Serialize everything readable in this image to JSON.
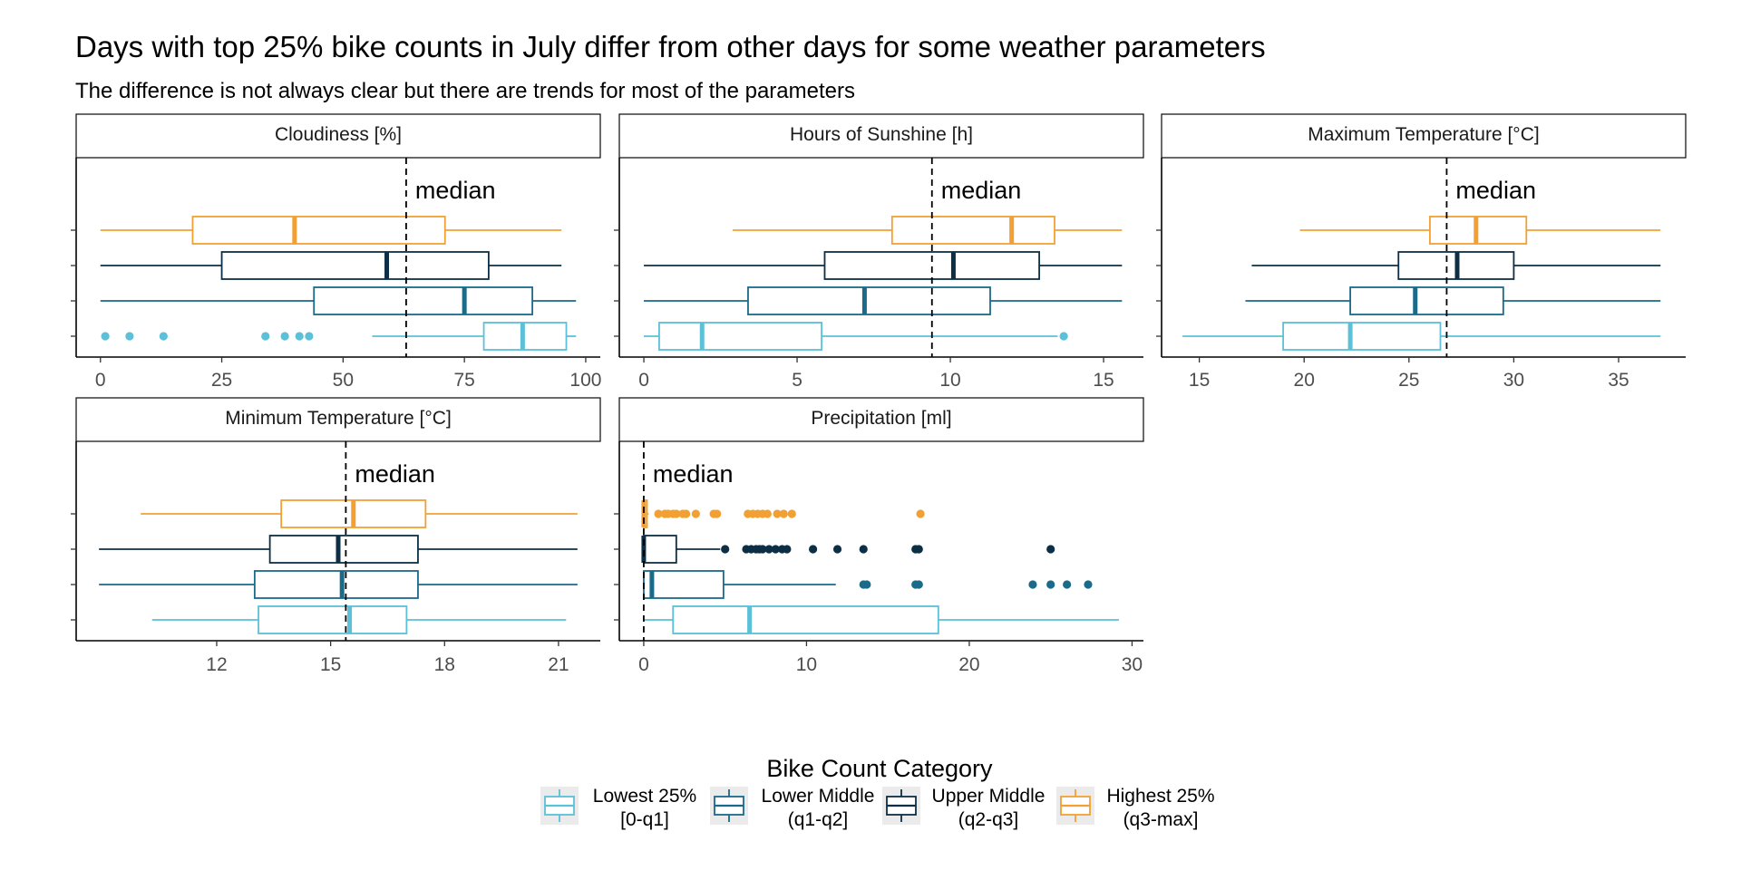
{
  "title": "Days with top 25% bike counts in July differ from other days for some weather parameters",
  "subtitle": "The difference is not always clear but there are trends for most of the parameters",
  "median_text": "median",
  "legend": {
    "title": "Bike Count Category",
    "items": [
      {
        "line1": "Lowest 25%",
        "line2": "[0-q1]",
        "color": "#5bc0d8"
      },
      {
        "line1": "Lower Middle",
        "line2": "(q1-q2]",
        "color": "#1a6a8a"
      },
      {
        "line1": "Upper Middle",
        "line2": "(q2-q3]",
        "color": "#0d2f45"
      },
      {
        "line1": "Highest 25%",
        "line2": "(q3-max]",
        "color": "#f2a033"
      }
    ]
  },
  "chart_data": {
    "type": "boxplot",
    "orientation": "horizontal",
    "series_order": [
      "Lowest 25%",
      "Lower Middle",
      "Upper Middle",
      "Highest 25%"
    ],
    "colors": [
      "#5bc0d8",
      "#1a6a8a",
      "#0d2f45",
      "#f2a033"
    ],
    "panels": [
      {
        "label": "Cloudiness [%]",
        "xlim": [
          -5,
          103
        ],
        "ticks": [
          0,
          25,
          50,
          75,
          100
        ],
        "overall_median": 63,
        "boxes": [
          {
            "min": 56,
            "q1": 79,
            "median": 87,
            "q3": 96,
            "max": 98,
            "outliers": [
              1,
              6,
              13,
              34,
              38,
              41,
              43
            ]
          },
          {
            "min": 0,
            "q1": 44,
            "median": 75,
            "q3": 89,
            "max": 98,
            "outliers": []
          },
          {
            "min": 0,
            "q1": 25,
            "median": 59,
            "q3": 80,
            "max": 95,
            "outliers": []
          },
          {
            "min": 0,
            "q1": 19,
            "median": 40,
            "q3": 71,
            "max": 95,
            "outliers": []
          }
        ]
      },
      {
        "label": "Hours of Sunshine [h]",
        "xlim": [
          -0.8,
          16.3
        ],
        "ticks": [
          0,
          5,
          10,
          15
        ],
        "overall_median": 9.4,
        "boxes": [
          {
            "min": 0,
            "q1": 0.5,
            "median": 1.9,
            "q3": 5.8,
            "max": 13.5,
            "outliers": [
              13.7
            ]
          },
          {
            "min": 0,
            "q1": 3.4,
            "median": 7.2,
            "q3": 11.3,
            "max": 15.6,
            "outliers": []
          },
          {
            "min": 0,
            "q1": 5.9,
            "median": 10.1,
            "q3": 12.9,
            "max": 15.6,
            "outliers": []
          },
          {
            "min": 2.9,
            "q1": 8.1,
            "median": 12.0,
            "q3": 13.4,
            "max": 15.6,
            "outliers": []
          }
        ]
      },
      {
        "label": "Maximum Temperature [°C]",
        "xlim": [
          13.2,
          38.2
        ],
        "ticks": [
          15,
          20,
          25,
          30,
          35
        ],
        "overall_median": 26.8,
        "boxes": [
          {
            "min": 14.2,
            "q1": 19.0,
            "median": 22.2,
            "q3": 26.5,
            "max": 37.0,
            "outliers": []
          },
          {
            "min": 17.2,
            "q1": 22.2,
            "median": 25.3,
            "q3": 29.5,
            "max": 37.0,
            "outliers": []
          },
          {
            "min": 17.5,
            "q1": 24.5,
            "median": 27.3,
            "q3": 30.0,
            "max": 37.0,
            "outliers": []
          },
          {
            "min": 19.8,
            "q1": 26.0,
            "median": 28.2,
            "q3": 30.6,
            "max": 37.0,
            "outliers": []
          }
        ]
      },
      {
        "label": "Minimum Temperature [°C]",
        "xlim": [
          8.3,
          22.1
        ],
        "ticks": [
          12,
          15,
          18,
          21
        ],
        "overall_median": 15.4,
        "boxes": [
          {
            "min": 10.3,
            "q1": 13.1,
            "median": 15.5,
            "q3": 17.0,
            "max": 21.2,
            "outliers": []
          },
          {
            "min": 8.9,
            "q1": 13.0,
            "median": 15.3,
            "q3": 17.3,
            "max": 21.5,
            "outliers": []
          },
          {
            "min": 8.9,
            "q1": 13.4,
            "median": 15.2,
            "q3": 17.3,
            "max": 21.5,
            "outliers": []
          },
          {
            "min": 10.0,
            "q1": 13.7,
            "median": 15.6,
            "q3": 17.5,
            "max": 21.5,
            "outliers": []
          }
        ]
      },
      {
        "label": "Precipitation  [ml]",
        "xlim": [
          -1.5,
          30.7
        ],
        "ticks": [
          0,
          10,
          20,
          30
        ],
        "overall_median": 0,
        "boxes": [
          {
            "min": 0,
            "q1": 1.8,
            "median": 6.5,
            "q3": 18.1,
            "max": 29.2,
            "outliers": []
          },
          {
            "min": 0,
            "q1": 0,
            "median": 0.5,
            "q3": 4.9,
            "max": 11.8,
            "outliers": [
              13.5,
              13.7,
              16.7,
              16.9,
              23.9,
              25.0,
              26.0,
              27.3
            ]
          },
          {
            "min": 0,
            "q1": 0,
            "median": 0,
            "q3": 2.0,
            "max": 4.7,
            "outliers": [
              5.0,
              6.3,
              6.6,
              6.9,
              7.1,
              7.3,
              7.7,
              8.1,
              8.5,
              8.8,
              10.4,
              11.9,
              13.5,
              16.7,
              16.9,
              25.0
            ]
          },
          {
            "min": 0,
            "q1": 0,
            "median": 0,
            "q3": 0.2,
            "max": 0.3,
            "outliers": [
              0.9,
              1.3,
              1.5,
              1.8,
              2.0,
              2.4,
              2.6,
              3.2,
              4.3,
              4.5,
              6.4,
              6.7,
              7.0,
              7.3,
              7.6,
              8.2,
              8.6,
              9.1,
              17.0
            ]
          }
        ]
      }
    ]
  }
}
